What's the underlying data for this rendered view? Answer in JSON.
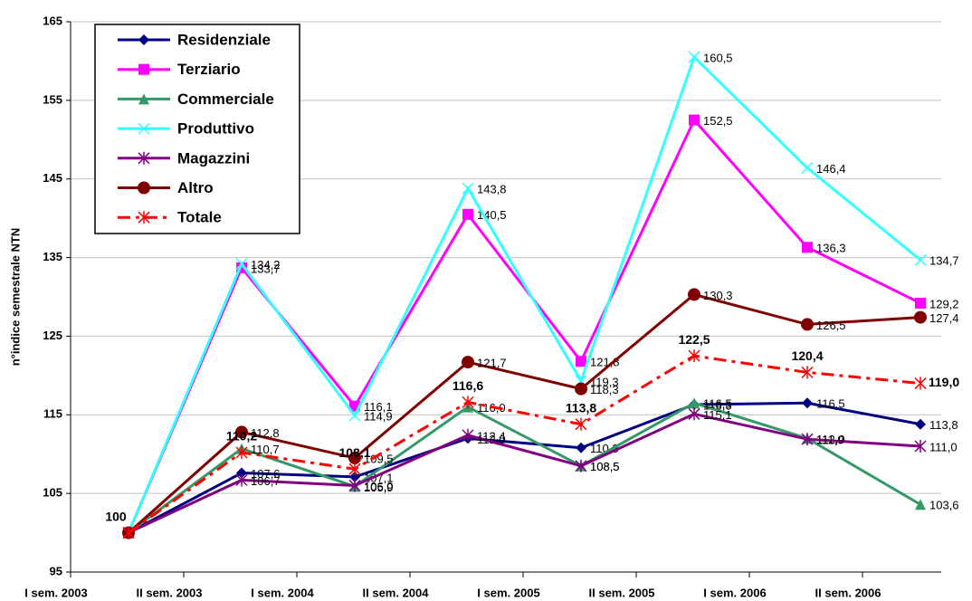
{
  "chart_data": {
    "type": "line",
    "y_label": "n°indice semestrale NTN",
    "categories": [
      "I sem. 2003",
      "II sem. 2003",
      "I sem. 2004",
      "II sem. 2004",
      "I sem. 2005",
      "II sem. 2005",
      "I sem. 2006",
      "II sem. 2006"
    ],
    "ylim": [
      95,
      165
    ],
    "yticks": [
      95,
      105,
      115,
      125,
      135,
      145,
      155,
      165
    ],
    "grid": true,
    "series": [
      {
        "name": "Residenziale",
        "color": "#000080",
        "marker": "diamond",
        "values": [
          100,
          107.6,
          107.1,
          112.0,
          110.8,
          116.3,
          116.5,
          113.8
        ],
        "value_labels": [
          null,
          "107,6",
          "107,1",
          "112,0",
          "110,8",
          "116,3",
          "116,5",
          "113,8"
        ]
      },
      {
        "name": "Terziario",
        "color": "#ff00ff",
        "marker": "square",
        "values": [
          100,
          133.7,
          116.1,
          140.5,
          121.8,
          152.5,
          136.3,
          129.2
        ],
        "value_labels": [
          null,
          "133,7",
          "116,1",
          "140,5",
          "121,8",
          "152,5",
          "136,3",
          "129,2"
        ]
      },
      {
        "name": "Commerciale",
        "color": "#339966",
        "marker": "triangle",
        "values": [
          100,
          110.7,
          105.9,
          116.0,
          108.5,
          116.5,
          112.0,
          103.6
        ],
        "value_labels": [
          null,
          "110,7",
          "105,9",
          "116,0",
          "108,5",
          "116,5",
          "112,0",
          "103,6"
        ]
      },
      {
        "name": "Produttivo",
        "color": "#33ffff",
        "marker": "x",
        "values": [
          100,
          134.2,
          114.9,
          143.8,
          119.3,
          160.5,
          146.4,
          134.7
        ],
        "value_labels": [
          null,
          "134,2",
          "114,9",
          "143,8",
          "119,3",
          "160,5",
          "146,4",
          "134,7"
        ]
      },
      {
        "name": "Magazzini",
        "color": "#800080",
        "marker": "star",
        "values": [
          100,
          106.7,
          106.0,
          112.4,
          108.5,
          115.1,
          111.9,
          111.0
        ],
        "value_labels": [
          null,
          "106,7",
          "106,0",
          "112,4",
          "108,5",
          "115,1",
          "111,9",
          "111,0"
        ]
      },
      {
        "name": "Altro",
        "color": "#800000",
        "marker": "circle",
        "values": [
          100,
          112.8,
          109.5,
          121.7,
          118.3,
          130.3,
          126.5,
          127.4
        ],
        "value_labels": [
          null,
          "112,8",
          "109,5",
          "121,7",
          "118,3",
          "130,3",
          "126,5",
          "127,4"
        ]
      },
      {
        "name": "Totale",
        "color": "#ff0000",
        "marker": "star",
        "dashed": true,
        "bold_labels": true,
        "values": [
          100,
          110.2,
          108.1,
          116.6,
          113.8,
          122.5,
          120.4,
          119.0
        ],
        "value_labels": [
          "100",
          "110,2",
          "108,1",
          "116,6",
          "113,8",
          "122,5",
          "120,4",
          "119,0"
        ]
      }
    ]
  }
}
